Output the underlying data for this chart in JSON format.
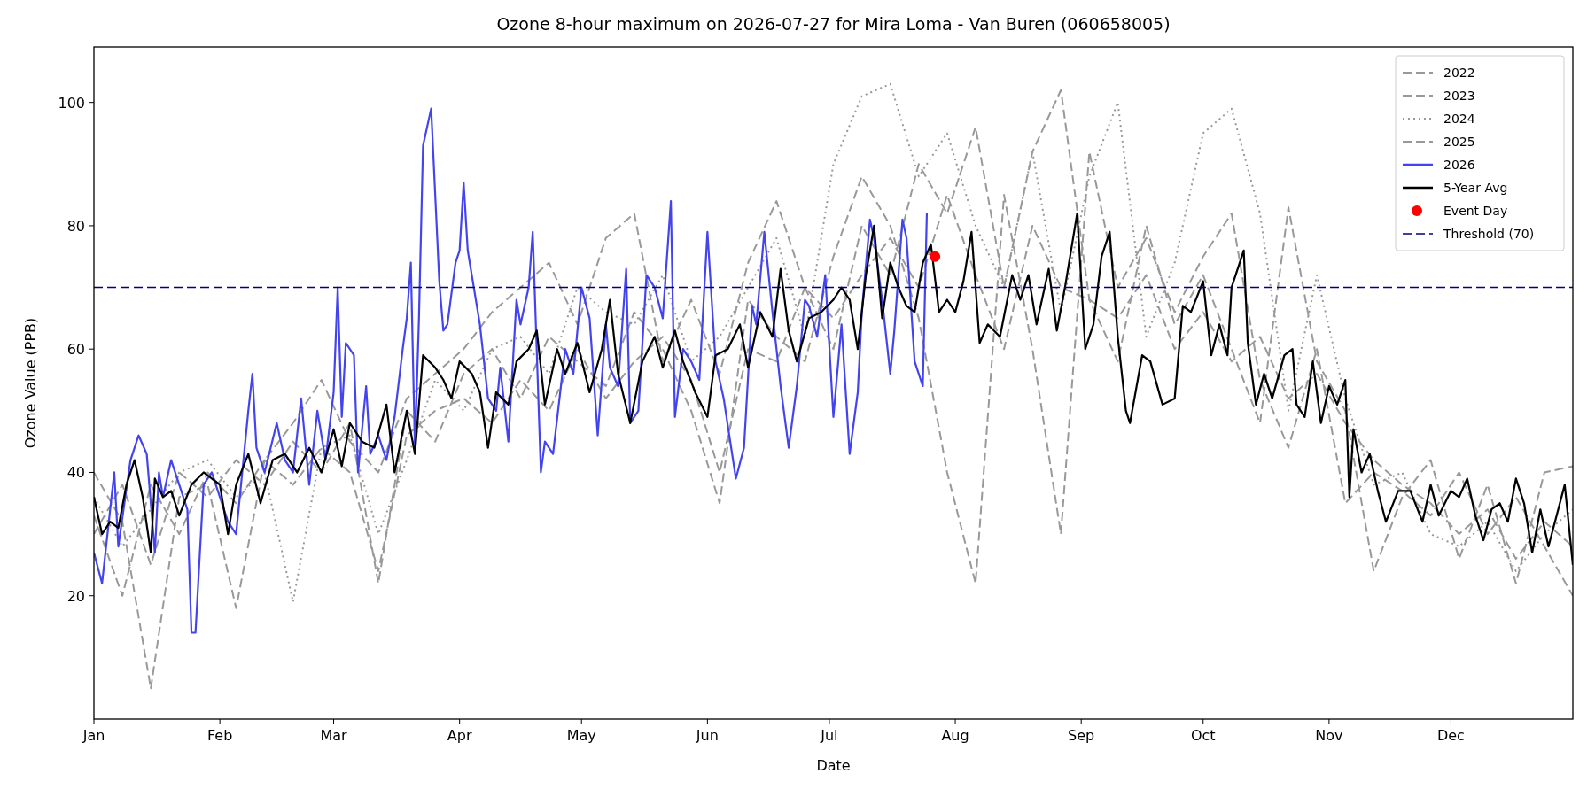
{
  "chart_data": {
    "type": "line",
    "title": "Ozone 8-hour maximum on 2026-07-27 for Mira Loma - Van Buren (060658005)",
    "xlabel": "Date",
    "ylabel": "Ozone Value (PPB)",
    "x": [
      "--01-01",
      "--01-08",
      "--01-15",
      "--01-22",
      "--01-29",
      "--02-05",
      "--02-12",
      "--02-19",
      "--02-26",
      "--03-05",
      "--03-12",
      "--03-19",
      "--03-26",
      "--04-02",
      "--04-09",
      "--04-16",
      "--04-23",
      "--04-30",
      "--05-07",
      "--05-14",
      "--05-21",
      "--05-28",
      "--06-04",
      "--06-11",
      "--06-18",
      "--06-25",
      "--07-02",
      "--07-09",
      "--07-16",
      "--07-23",
      "--07-30",
      "--08-06",
      "--08-13",
      "--08-20",
      "--08-27",
      "--09-03",
      "--09-10",
      "--09-17",
      "--09-24",
      "--10-01",
      "--10-08",
      "--10-15",
      "--10-22",
      "--10-29",
      "--11-05",
      "--11-12",
      "--11-19",
      "--11-26",
      "--12-03",
      "--12-10",
      "--12-17",
      "--12-24",
      "--12-31"
    ],
    "xlim": [
      "--01-01",
      "--12-31"
    ],
    "xticks": [
      {
        "value": "--01-01",
        "label": "Jan"
      },
      {
        "value": "--02-01",
        "label": "Feb"
      },
      {
        "value": "--03-01",
        "label": "Mar"
      },
      {
        "value": "--04-01",
        "label": "Apr"
      },
      {
        "value": "--05-01",
        "label": "May"
      },
      {
        "value": "--06-01",
        "label": "Jun"
      },
      {
        "value": "--07-01",
        "label": "Jul"
      },
      {
        "value": "--08-01",
        "label": "Aug"
      },
      {
        "value": "--09-01",
        "label": "Sep"
      },
      {
        "value": "--10-01",
        "label": "Oct"
      },
      {
        "value": "--11-01",
        "label": "Nov"
      },
      {
        "value": "--12-01",
        "label": "Dec"
      }
    ],
    "ylim": [
      0,
      109
    ],
    "yticks": [
      20,
      40,
      60,
      80,
      100
    ],
    "legend": "top right",
    "series": [
      {
        "name": "2022",
        "color": "#999999",
        "line_style": "dashed",
        "values": [
          33,
          20,
          38,
          30,
          40,
          35,
          42,
          38,
          44,
          40,
          24,
          46,
          50,
          52,
          48,
          55,
          50,
          60,
          52,
          58,
          62,
          55,
          40,
          60,
          58,
          70,
          65,
          72,
          78,
          70,
          85,
          72,
          60,
          80,
          70,
          68,
          65,
          72,
          60,
          66,
          58,
          62,
          52,
          56,
          48,
          42,
          38,
          35,
          30,
          34,
          26,
          32,
          28
        ]
      },
      {
        "name": "2023",
        "color": "#999999",
        "line_style": "dashed",
        "values": [
          30,
          38,
          25,
          40,
          36,
          42,
          38,
          45,
          40,
          48,
          22,
          50,
          45,
          56,
          60,
          52,
          62,
          58,
          54,
          66,
          60,
          50,
          35,
          68,
          62,
          58,
          75,
          88,
          80,
          65,
          40,
          22,
          85,
          60,
          30,
          92,
          70,
          78,
          66,
          75,
          82,
          55,
          44,
          60,
          35,
          40,
          37,
          33,
          40,
          30,
          36,
          28,
          20
        ]
      },
      {
        "name": "2024",
        "color": "#999999",
        "line_style": "dotted",
        "values": [
          36,
          28,
          34,
          40,
          42,
          36,
          40,
          19,
          44,
          46,
          30,
          42,
          55,
          50,
          60,
          62,
          56,
          70,
          66,
          64,
          72,
          58,
          62,
          70,
          78,
          62,
          90,
          101,
          103,
          88,
          95,
          80,
          70,
          92,
          66,
          88,
          100,
          62,
          74,
          95,
          99,
          82,
          50,
          72,
          52,
          38,
          40,
          30,
          28,
          32,
          24,
          30,
          34
        ]
      },
      {
        "name": "2025",
        "color": "#999999",
        "line_style": "dashed",
        "values": [
          40,
          32,
          5,
          36,
          38,
          18,
          42,
          48,
          55,
          45,
          40,
          52,
          56,
          60,
          66,
          70,
          74,
          64,
          78,
          82,
          58,
          68,
          56,
          74,
          84,
          70,
          60,
          80,
          72,
          90,
          82,
          96,
          70,
          92,
          102,
          68,
          58,
          80,
          64,
          72,
          60,
          48,
          83,
          58,
          50,
          24,
          36,
          42,
          26,
          38,
          22,
          40,
          41
        ]
      },
      {
        "name": "2026",
        "color": "#4444ee",
        "line_style": "solid",
        "x": [
          "--01-01",
          "--01-03",
          "--01-06",
          "--01-07",
          "--01-10",
          "--01-12",
          "--01-14",
          "--01-16",
          "--01-17",
          "--01-18",
          "--01-20",
          "--01-22",
          "--01-24",
          "--01-25",
          "--01-26",
          "--01-28",
          "--01-30",
          "--02-01",
          "--02-03",
          "--02-05",
          "--02-08",
          "--02-09",
          "--02-10",
          "--02-12",
          "--02-15",
          "--02-17",
          "--02-19",
          "--02-21",
          "--02-23",
          "--02-25",
          "--02-27",
          "--03-01",
          "--03-02",
          "--03-03",
          "--03-04",
          "--03-06",
          "--03-07",
          "--03-09",
          "--03-10",
          "--03-12",
          "--03-14",
          "--03-16",
          "--03-18",
          "--03-19",
          "--03-20",
          "--03-21",
          "--03-22",
          "--03-23",
          "--03-25",
          "--03-27",
          "--03-28",
          "--03-29",
          "--03-31",
          "--04-01",
          "--04-02",
          "--04-03",
          "--04-06",
          "--04-08",
          "--04-10",
          "--04-11",
          "--04-13",
          "--04-15",
          "--04-16",
          "--04-18",
          "--04-19",
          "--04-21",
          "--04-22",
          "--04-24",
          "--04-27",
          "--04-29",
          "--05-01",
          "--05-03",
          "--05-05",
          "--05-07",
          "--05-08",
          "--05-10",
          "--05-12",
          "--05-13",
          "--05-15",
          "--05-17",
          "--05-19",
          "--05-21",
          "--05-23",
          "--05-24",
          "--05-26",
          "--05-28",
          "--05-30",
          "--06-01",
          "--06-03",
          "--06-05",
          "--06-08",
          "--06-10",
          "--06-12",
          "--06-13",
          "--06-15",
          "--06-17",
          "--06-19",
          "--06-21",
          "--06-23",
          "--06-25",
          "--06-26",
          "--06-28",
          "--06-30",
          "--07-02",
          "--07-04",
          "--07-06",
          "--07-08",
          "--07-09",
          "--07-11",
          "--07-12",
          "--07-14",
          "--07-16",
          "--07-17",
          "--07-19",
          "--07-20",
          "--07-22",
          "--07-24",
          "--07-25"
        ],
        "values": [
          27,
          22,
          40,
          28,
          42,
          46,
          43,
          27,
          40,
          36,
          42,
          38,
          34,
          14,
          14,
          38,
          40,
          36,
          32,
          30,
          50,
          56,
          44,
          40,
          48,
          42,
          40,
          52,
          38,
          50,
          42,
          53,
          70,
          49,
          61,
          59,
          40,
          54,
          43,
          46,
          42,
          49,
          60,
          65,
          74,
          44,
          65,
          93,
          99,
          71,
          63,
          64,
          74,
          76,
          87,
          76,
          64,
          52,
          50,
          57,
          45,
          68,
          64,
          70,
          79,
          40,
          45,
          43,
          60,
          56,
          70,
          65,
          46,
          64,
          57,
          54,
          73,
          48,
          50,
          72,
          70,
          65,
          84,
          49,
          60,
          58,
          55,
          79,
          58,
          52,
          39,
          44,
          67,
          64,
          79,
          66,
          54,
          44,
          54,
          68,
          67,
          62,
          72,
          49,
          64,
          43,
          53,
          66,
          81,
          78,
          68,
          56,
          63,
          81,
          78,
          58,
          54,
          82
        ]
      },
      {
        "name": "5-Year Avg",
        "color": "#000000",
        "line_style": "solid",
        "x": [
          "--01-01",
          "--01-03",
          "--01-05",
          "--01-07",
          "--01-09",
          "--01-11",
          "--01-13",
          "--01-15",
          "--01-16",
          "--01-18",
          "--01-20",
          "--01-22",
          "--01-25",
          "--01-28",
          "--02-01",
          "--02-03",
          "--02-05",
          "--02-08",
          "--02-11",
          "--02-14",
          "--02-17",
          "--02-20",
          "--02-23",
          "--02-26",
          "--03-01",
          "--03-03",
          "--03-05",
          "--03-08",
          "--03-11",
          "--03-14",
          "--03-16",
          "--03-19",
          "--03-21",
          "--03-23",
          "--03-26",
          "--03-28",
          "--03-30",
          "--04-01",
          "--04-04",
          "--04-06",
          "--04-08",
          "--04-10",
          "--04-13",
          "--04-15",
          "--04-18",
          "--04-20",
          "--04-22",
          "--04-25",
          "--04-27",
          "--04-30",
          "--05-03",
          "--05-06",
          "--05-08",
          "--05-10",
          "--05-13",
          "--05-16",
          "--05-19",
          "--05-21",
          "--05-24",
          "--05-26",
          "--05-29",
          "--06-01",
          "--06-03",
          "--06-06",
          "--06-09",
          "--06-11",
          "--06-14",
          "--06-17",
          "--06-19",
          "--06-21",
          "--06-23",
          "--06-26",
          "--06-29",
          "--07-02",
          "--07-04",
          "--07-06",
          "--07-08",
          "--07-10",
          "--07-12",
          "--07-14",
          "--07-16",
          "--07-18",
          "--07-20",
          "--07-22",
          "--07-24",
          "--07-26",
          "--07-28",
          "--07-30",
          "--08-01",
          "--08-03",
          "--08-05",
          "--08-07",
          "--08-09",
          "--08-12",
          "--08-15",
          "--08-17",
          "--08-19",
          "--08-21",
          "--08-24",
          "--08-26",
          "--08-28",
          "--08-31",
          "--09-02",
          "--09-04",
          "--09-06",
          "--09-08",
          "--09-10",
          "--09-12",
          "--09-13",
          "--09-16",
          "--09-18",
          "--09-21",
          "--09-24",
          "--09-26",
          "--09-28",
          "--10-01",
          "--10-03",
          "--10-05",
          "--10-07",
          "--10-08",
          "--10-11",
          "--10-12",
          "--10-14",
          "--10-16",
          "--10-18",
          "--10-21",
          "--10-23",
          "--10-24",
          "--10-26",
          "--10-28",
          "--10-30",
          "--11-01",
          "--11-03",
          "--11-05",
          "--11-06",
          "--11-07",
          "--11-09",
          "--11-11",
          "--11-13",
          "--11-15",
          "--11-18",
          "--11-21",
          "--11-24",
          "--11-26",
          "--11-28",
          "--12-01",
          "--12-03",
          "--12-05",
          "--12-07",
          "--12-09",
          "--12-11",
          "--12-13",
          "--12-15",
          "--12-17",
          "--12-19",
          "--12-21",
          "--12-23",
          "--12-25",
          "--12-27",
          "--12-29",
          "--12-31"
        ],
        "values": [
          36,
          30,
          32,
          31,
          38,
          42,
          36,
          27,
          39,
          36,
          37,
          33,
          38,
          40,
          38,
          30,
          38,
          43,
          35,
          42,
          43,
          40,
          44,
          40,
          47,
          41,
          48,
          45,
          44,
          51,
          40,
          50,
          43,
          59,
          57,
          55,
          52,
          58,
          56,
          53,
          44,
          53,
          51,
          58,
          60,
          63,
          51,
          60,
          56,
          61,
          53,
          60,
          68,
          56,
          48,
          58,
          62,
          57,
          63,
          58,
          53,
          49,
          59,
          60,
          64,
          57,
          66,
          62,
          73,
          63,
          58,
          65,
          66,
          68,
          70,
          68,
          60,
          72,
          80,
          65,
          74,
          70,
          67,
          66,
          74,
          77,
          66,
          68,
          66,
          71,
          79,
          61,
          64,
          62,
          72,
          68,
          72,
          64,
          73,
          63,
          70,
          82,
          60,
          64,
          75,
          79,
          62,
          50,
          48,
          59,
          58,
          51,
          52,
          67,
          66,
          71,
          59,
          64,
          59,
          70,
          76,
          61,
          51,
          56,
          52,
          59,
          60,
          51,
          49,
          58,
          48,
          54,
          51,
          55,
          36,
          47,
          40,
          43,
          37,
          32,
          37,
          37,
          32,
          38,
          33,
          37,
          36,
          39,
          33,
          29,
          34,
          35,
          32,
          39,
          35,
          27,
          34,
          28,
          33,
          38,
          25
        ]
      },
      {
        "name": "Event Day",
        "type": "scatter",
        "marker": "circle",
        "color": "#ff0000",
        "x": [
          "--07-27"
        ],
        "values": [
          75
        ]
      }
    ],
    "ref_lines": [
      {
        "axis": "y",
        "value": 70,
        "label": "Threshold (70)",
        "color": "#000080",
        "line_style": "dashed"
      }
    ]
  }
}
